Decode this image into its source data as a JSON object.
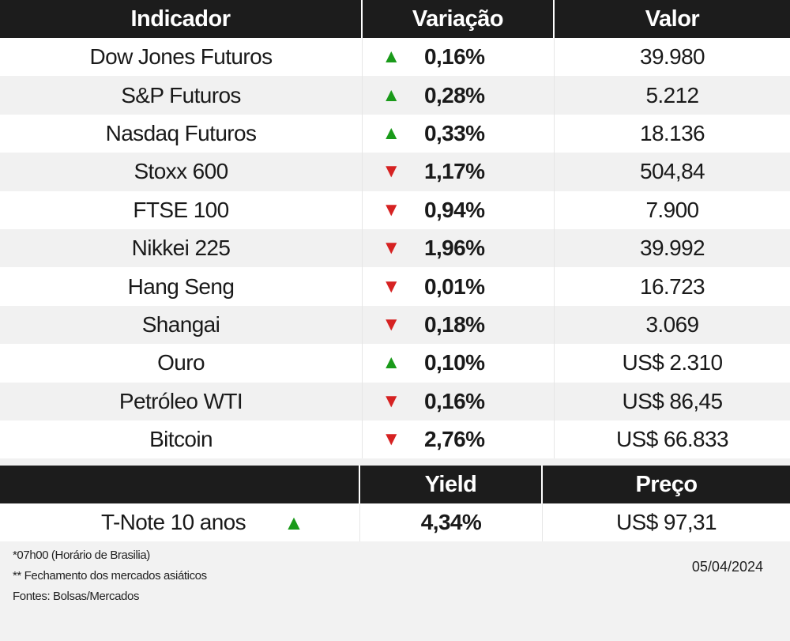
{
  "main_table": {
    "headers": {
      "indicator": "Indicador",
      "variation": "Variação",
      "value": "Valor"
    },
    "rows": [
      {
        "name": "Dow Jones Futuros",
        "direction": "up",
        "arrow": "▲",
        "variation": "0,16%",
        "value": "39.980"
      },
      {
        "name": "S&P Futuros",
        "direction": "up",
        "arrow": "▲",
        "variation": "0,28%",
        "value": "5.212"
      },
      {
        "name": "Nasdaq Futuros",
        "direction": "up",
        "arrow": "▲",
        "variation": "0,33%",
        "value": "18.136"
      },
      {
        "name": "Stoxx 600",
        "direction": "down",
        "arrow": "▼",
        "variation": "1,17%",
        "value": "504,84"
      },
      {
        "name": "FTSE 100",
        "direction": "down",
        "arrow": "▼",
        "variation": "0,94%",
        "value": "7.900"
      },
      {
        "name": "Nikkei 225",
        "direction": "down",
        "arrow": "▼",
        "variation": "1,96%",
        "value": "39.992"
      },
      {
        "name": "Hang Seng",
        "direction": "down",
        "arrow": "▼",
        "variation": "0,01%",
        "value": "16.723"
      },
      {
        "name": "Shangai",
        "direction": "down",
        "arrow": "▼",
        "variation": "0,18%",
        "value": "3.069"
      },
      {
        "name": "Ouro",
        "direction": "up",
        "arrow": "▲",
        "variation": "0,10%",
        "value": "US$ 2.310"
      },
      {
        "name": "Petróleo WTI",
        "direction": "down",
        "arrow": "▼",
        "variation": "0,16%",
        "value": "US$ 86,45"
      },
      {
        "name": "Bitcoin",
        "direction": "down",
        "arrow": "▼",
        "variation": "2,76%",
        "value": "US$ 66.833"
      }
    ]
  },
  "bond_table": {
    "headers": {
      "blank": "",
      "yield": "Yield",
      "price": "Preço"
    },
    "row": {
      "name": "T-Note 10 anos",
      "direction": "up",
      "arrow": "▲",
      "yield": "4,34%",
      "price": "US$ 97,31"
    }
  },
  "notes": [
    "*07h00 (Horário de Brasilia)",
    "** Fechamento dos mercados asiáticos",
    "Fontes: Bolsas/Mercados"
  ],
  "date": "05/04/2024",
  "colors": {
    "header_bg": "#1c1c1c",
    "up": "#1a9a1a",
    "down": "#d62222"
  }
}
